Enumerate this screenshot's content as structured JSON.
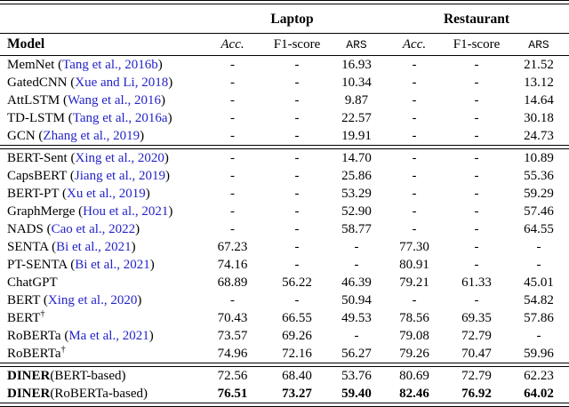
{
  "page": {
    "background": "#ffffff",
    "text_color": "#000000",
    "citation_color": "#2323c8"
  },
  "header": {
    "group_laptop": "Laptop",
    "group_restaurant": "Restaurant",
    "col_model": "Model",
    "col_acc": "Acc.",
    "col_f1": "F1-score",
    "col_ars": "ARS"
  },
  "table": {
    "dash": "-",
    "dagger": "†",
    "sections": [
      {
        "rows": [
          {
            "name": "MemNet",
            "citation": "Tang et al., 2016b",
            "dagger": false,
            "bold_name": false,
            "suffix": "",
            "bold_values": false,
            "values": [
              "-",
              "-",
              "16.93",
              "-",
              "-",
              "21.52"
            ]
          },
          {
            "name": "GatedCNN",
            "citation": "Xue and Li, 2018",
            "dagger": false,
            "bold_name": false,
            "suffix": "",
            "bold_values": false,
            "values": [
              "-",
              "-",
              "10.34",
              "-",
              "-",
              "13.12"
            ]
          },
          {
            "name": "AttLSTM",
            "citation": "Wang et al., 2016",
            "dagger": false,
            "bold_name": false,
            "suffix": "",
            "bold_values": false,
            "values": [
              "-",
              "-",
              "9.87",
              "-",
              "-",
              "14.64"
            ]
          },
          {
            "name": "TD-LSTM",
            "citation": "Tang et al., 2016a",
            "dagger": false,
            "bold_name": false,
            "suffix": "",
            "bold_values": false,
            "values": [
              "-",
              "-",
              "22.57",
              "-",
              "-",
              "30.18"
            ]
          },
          {
            "name": "GCN",
            "citation": "Zhang et al., 2019",
            "dagger": false,
            "bold_name": false,
            "suffix": "",
            "bold_values": false,
            "values": [
              "-",
              "-",
              "19.91",
              "-",
              "-",
              "24.73"
            ]
          }
        ]
      },
      {
        "rows": [
          {
            "name": "BERT-Sent",
            "citation": "Xing et al., 2020",
            "dagger": false,
            "bold_name": false,
            "suffix": "",
            "bold_values": false,
            "values": [
              "-",
              "-",
              "14.70",
              "-",
              "-",
              "10.89"
            ]
          },
          {
            "name": "CapsBERT",
            "citation": "Jiang et al., 2019",
            "dagger": false,
            "bold_name": false,
            "suffix": "",
            "bold_values": false,
            "values": [
              "-",
              "-",
              "25.86",
              "-",
              "-",
              "55.36"
            ]
          },
          {
            "name": "BERT-PT",
            "citation": "Xu et al., 2019",
            "dagger": false,
            "bold_name": false,
            "suffix": "",
            "bold_values": false,
            "values": [
              "-",
              "-",
              "53.29",
              "-",
              "-",
              "59.29"
            ]
          },
          {
            "name": "GraphMerge",
            "citation": "Hou et al., 2021",
            "dagger": false,
            "bold_name": false,
            "suffix": "",
            "bold_values": false,
            "values": [
              "-",
              "-",
              "52.90",
              "-",
              "-",
              "57.46"
            ]
          },
          {
            "name": "NADS",
            "citation": "Cao et al., 2022",
            "dagger": false,
            "bold_name": false,
            "suffix": "",
            "bold_values": false,
            "values": [
              "-",
              "-",
              "58.77",
              "-",
              "-",
              "64.55"
            ]
          },
          {
            "name": "SENTA",
            "citation": "Bi et al., 2021",
            "dagger": false,
            "bold_name": false,
            "suffix": "",
            "bold_values": false,
            "values": [
              "67.23",
              "-",
              "-",
              "77.30",
              "-",
              "-"
            ]
          },
          {
            "name": "PT-SENTA",
            "citation": "Bi et al., 2021",
            "dagger": false,
            "bold_name": false,
            "suffix": "",
            "bold_values": false,
            "values": [
              "74.16",
              "-",
              "-",
              "80.91",
              "-",
              "-"
            ]
          },
          {
            "name": "ChatGPT",
            "citation": "",
            "dagger": false,
            "bold_name": false,
            "suffix": "",
            "bold_values": false,
            "values": [
              "68.89",
              "56.22",
              "46.39",
              "79.21",
              "61.33",
              "45.01"
            ]
          },
          {
            "name": "BERT",
            "citation": "Xing et al., 2020",
            "dagger": false,
            "bold_name": false,
            "suffix": "",
            "bold_values": false,
            "values": [
              "-",
              "-",
              "50.94",
              "-",
              "-",
              "54.82"
            ]
          },
          {
            "name": "BERT",
            "citation": "",
            "dagger": true,
            "bold_name": false,
            "suffix": "",
            "bold_values": false,
            "values": [
              "70.43",
              "66.55",
              "49.53",
              "78.56",
              "69.35",
              "57.86"
            ]
          },
          {
            "name": "RoBERTa",
            "citation": "Ma et al., 2021",
            "dagger": false,
            "bold_name": false,
            "suffix": "",
            "bold_values": false,
            "values": [
              "73.57",
              "69.26",
              "-",
              "79.08",
              "72.79",
              "-"
            ]
          },
          {
            "name": "RoBERTa",
            "citation": "",
            "dagger": true,
            "bold_name": false,
            "suffix": "",
            "bold_values": false,
            "values": [
              "74.96",
              "72.16",
              "56.27",
              "79.26",
              "70.47",
              "59.96"
            ]
          }
        ]
      },
      {
        "rows": [
          {
            "name": "DINER",
            "citation": "",
            "dagger": false,
            "bold_name": true,
            "suffix": "(BERT-based)",
            "bold_values": false,
            "values": [
              "72.56",
              "68.40",
              "53.76",
              "80.69",
              "72.79",
              "62.23"
            ]
          },
          {
            "name": "DINER",
            "citation": "",
            "dagger": false,
            "bold_name": true,
            "suffix": "(RoBERTa-based)",
            "bold_values": true,
            "values": [
              "76.51",
              "73.27",
              "59.40",
              "82.46",
              "76.92",
              "64.02"
            ]
          }
        ]
      }
    ]
  }
}
